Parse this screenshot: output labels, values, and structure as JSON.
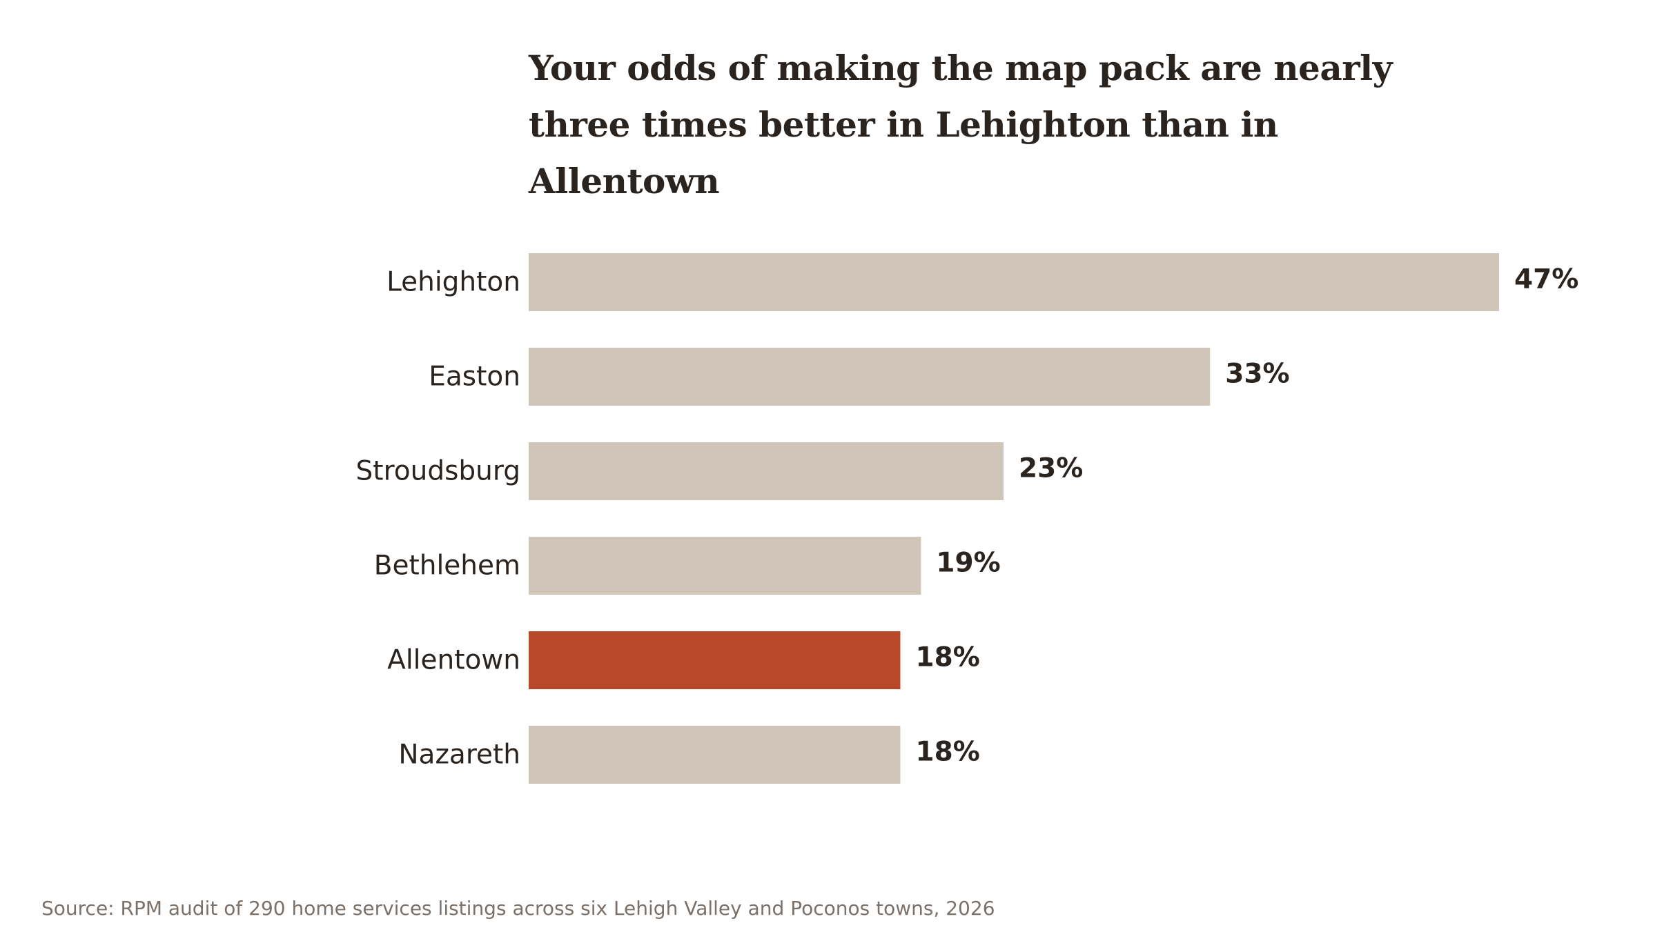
{
  "chart_data": {
    "type": "bar",
    "orientation": "horizontal",
    "title": "Your odds of making the map pack are nearly three times better in Lehighton than in Allentown",
    "categories": [
      "Lehighton",
      "Easton",
      "Stroudsburg",
      "Bethlehem",
      "Allentown",
      "Nazareth"
    ],
    "values": [
      47,
      33,
      23,
      19,
      18,
      18
    ],
    "value_labels": [
      "47%",
      "33%",
      "23%",
      "19%",
      "18%",
      "18%"
    ],
    "highlight": "Allentown",
    "xlim": [
      0,
      47
    ],
    "grid": false,
    "legend": "none",
    "xlabel": "",
    "ylabel": "",
    "colors": {
      "bar": "#d0c5b9",
      "highlight": "#b8482a",
      "text": "#2a2420",
      "source": "#7b716b"
    }
  },
  "source": "Source: RPM audit of 290 home services listings across six Lehigh Valley and Poconos towns, 2026"
}
